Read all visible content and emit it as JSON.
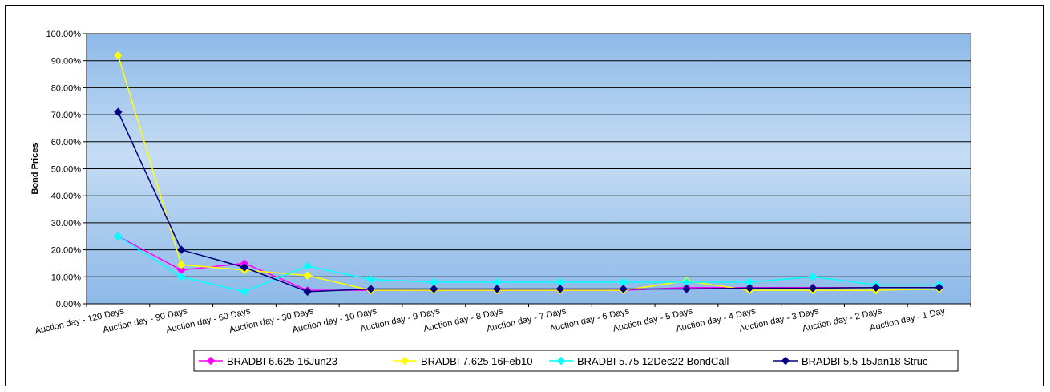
{
  "chart_data": {
    "type": "line",
    "ylabel": "Bond Prices",
    "xlabel": "",
    "ylim": [
      0,
      1
    ],
    "yticks": [
      "0.00%",
      "10.00%",
      "20.00%",
      "30.00%",
      "40.00%",
      "50.00%",
      "60.00%",
      "70.00%",
      "80.00%",
      "90.00%",
      "100.00%"
    ],
    "grid": true,
    "legend": "bottom",
    "categories": [
      "Auction day - 120 Days",
      "Auction day - 90 Days",
      "Auction day - 60 Days",
      "Auction day - 30 Days",
      "Auction day - 10 Days",
      "Auction day - 9 Days",
      "Auction day - 8 Days",
      "Auction day - 7 Days",
      "Auction day - 6 Days",
      "Auction day - 5 Days",
      "Auction day - 4 Days",
      "Auction day - 3 Days",
      "Auction day - 2 Days",
      "Auction day - 1 Day"
    ],
    "series": [
      {
        "name": "BRADBI 6.625 16Jun23",
        "color": "#ff00ff",
        "marker": "diamond",
        "values": [
          0.25,
          0.125,
          0.15,
          0.05,
          0.05,
          0.05,
          0.05,
          0.05,
          0.05,
          0.06,
          0.06,
          0.06,
          0.06,
          0.06
        ]
      },
      {
        "name": "BRADBI 7.625 16Feb10",
        "color": "#ffff00",
        "marker": "diamond",
        "values": [
          0.92,
          0.145,
          0.125,
          0.105,
          0.05,
          0.05,
          0.05,
          0.05,
          0.05,
          0.085,
          0.05,
          0.05,
          0.05,
          0.055
        ]
      },
      {
        "name": "BRADBI 5.75 12Dec22 BondCall",
        "color": "#00ffff",
        "marker": "diamond",
        "values": [
          0.25,
          0.1,
          0.045,
          0.14,
          0.09,
          0.08,
          0.08,
          0.08,
          0.08,
          0.08,
          0.08,
          0.1,
          0.07,
          0.07
        ]
      },
      {
        "name": "BRADBI 5.5 15Jan18 Struc",
        "color": "#000080",
        "marker": "diamond",
        "values": [
          0.71,
          0.2,
          0.135,
          0.045,
          0.055,
          0.055,
          0.055,
          0.055,
          0.055,
          0.055,
          0.058,
          0.058,
          0.06,
          0.06
        ]
      }
    ]
  }
}
